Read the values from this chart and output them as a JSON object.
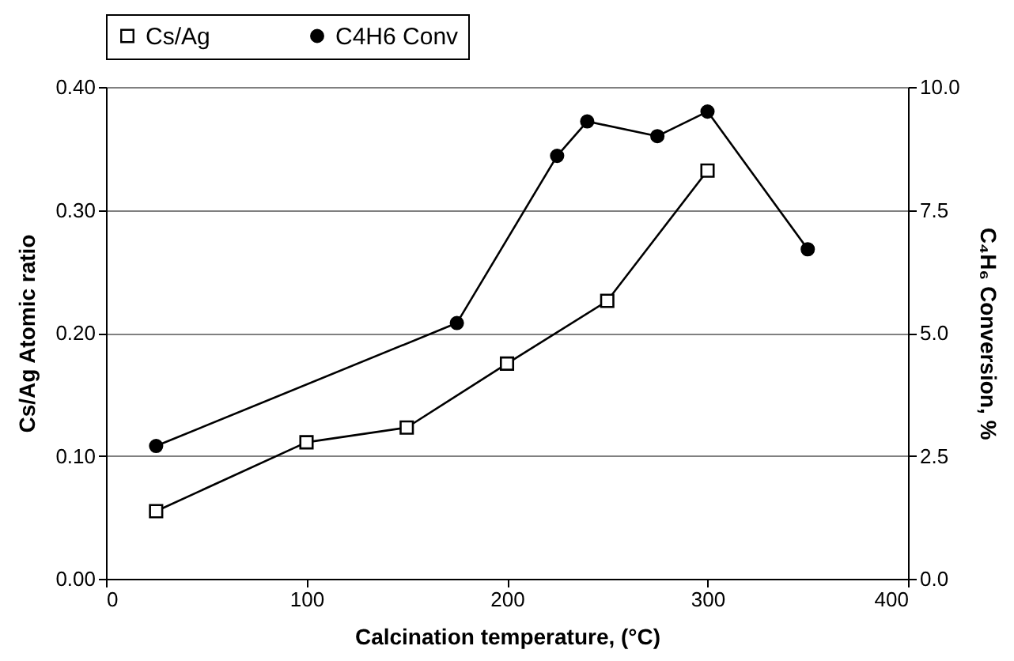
{
  "chart_data": {
    "type": "line",
    "xlabel": "Calcination temperature, (°C)",
    "ylabel": "Cs/Ag Atomic ratio",
    "y2label": "C₄H₆ Conversion, %",
    "series": [
      {
        "name": "Cs/Ag",
        "color": "#000000",
        "marker": "square",
        "x": [
          25,
          100,
          150,
          200,
          250,
          300
        ],
        "values": [
          0.055,
          0.111,
          0.123,
          0.175,
          0.226,
          0.332
        ]
      },
      {
        "name": "C4H6 Conv",
        "color": "#000000",
        "marker": "circle",
        "axis": "y2",
        "x": [
          25,
          175,
          225,
          240,
          275,
          300,
          350
        ],
        "values": [
          2.7,
          5.2,
          8.6,
          9.3,
          9.0,
          9.5,
          6.7
        ]
      }
    ],
    "xlim": [
      0,
      400
    ],
    "xticks": [
      0,
      100,
      200,
      300,
      400
    ],
    "ylim": [
      0,
      0.4
    ],
    "yticks": [
      {
        "value": 0,
        "label": "0.00"
      },
      {
        "value": 0.1,
        "label": "0.10"
      },
      {
        "value": 0.2,
        "label": "0.20"
      },
      {
        "value": 0.3,
        "label": "0.30"
      },
      {
        "value": 0.4,
        "label": "0.40"
      }
    ],
    "y2lim": [
      0,
      10
    ],
    "y2ticks": [
      {
        "value": 0,
        "label": "0.0"
      },
      {
        "value": 2.5,
        "label": "2.5"
      },
      {
        "value": 5,
        "label": "5.0"
      },
      {
        "value": 7.5,
        "label": "7.5"
      },
      {
        "value": 10,
        "label": "10.0"
      }
    ],
    "grid": "y",
    "legend": "top",
    "line_style": "solid"
  }
}
